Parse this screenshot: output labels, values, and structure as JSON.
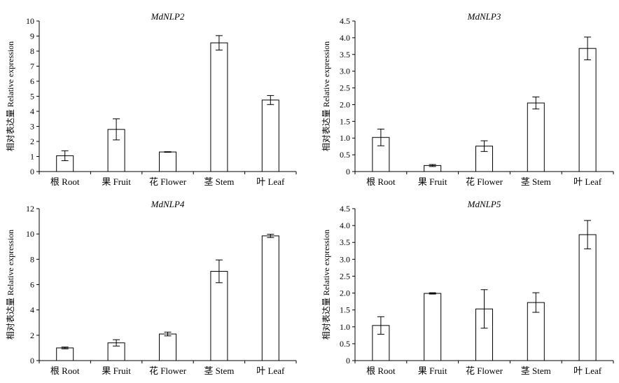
{
  "chart_data": [
    {
      "type": "bar",
      "title": "MdNLP2",
      "ylabel": "相对表达量 Relative expression",
      "xlabel": "",
      "categories": [
        "根 Root",
        "果 Fruit",
        "花 Flower",
        "茎 Stem",
        "叶 Leaf"
      ],
      "values": [
        1.05,
        2.8,
        1.3,
        8.55,
        4.75
      ],
      "errors": [
        0.33,
        0.7,
        0.02,
        0.48,
        0.3
      ],
      "ylim": [
        0,
        10
      ],
      "yticks": [
        "0",
        "1",
        "2",
        "3",
        "4",
        "5",
        "6",
        "7",
        "8",
        "9",
        "10"
      ],
      "grid": false
    },
    {
      "type": "bar",
      "title": "MdNLP3",
      "ylabel": "相对表达量 Relative expression",
      "xlabel": "",
      "categories": [
        "根 Root",
        "果 Fruit",
        "花 Flower",
        "茎 Stem",
        "叶 Leaf"
      ],
      "values": [
        1.02,
        0.18,
        0.76,
        2.05,
        3.68
      ],
      "errors": [
        0.25,
        0.03,
        0.16,
        0.18,
        0.34
      ],
      "ylim": [
        0,
        4.5
      ],
      "yticks": [
        "0",
        "0.5",
        "1.0",
        "1.5",
        "2.0",
        "2.5",
        "3.0",
        "3.5",
        "4.0",
        "4.5"
      ],
      "grid": false
    },
    {
      "type": "bar",
      "title": "MdNLP4",
      "ylabel": "相对表达量 Relative expression",
      "xlabel": "",
      "categories": [
        "根 Root",
        "果 Fruit",
        "花 Flower",
        "茎 Stem",
        "叶 Leaf"
      ],
      "values": [
        1.0,
        1.4,
        2.1,
        7.05,
        9.85
      ],
      "errors": [
        0.07,
        0.25,
        0.15,
        0.9,
        0.13
      ],
      "ylim": [
        0,
        12
      ],
      "yticks": [
        "0",
        "2",
        "4",
        "6",
        "8",
        "10",
        "12"
      ],
      "grid": false
    },
    {
      "type": "bar",
      "title": "MdNLP5",
      "ylabel": "相对表达量 Relative expression",
      "xlabel": "",
      "categories": [
        "根 Root",
        "果 Fruit",
        "花 Flower",
        "茎 Stem",
        "叶 Leaf"
      ],
      "values": [
        1.04,
        1.99,
        1.53,
        1.72,
        3.73
      ],
      "errors": [
        0.26,
        0.02,
        0.57,
        0.29,
        0.42
      ],
      "ylim": [
        0,
        4.5
      ],
      "yticks": [
        "0",
        "0.5",
        "1.0",
        "1.5",
        "2.0",
        "2.5",
        "3.0",
        "3.5",
        "4.0",
        "4.5"
      ],
      "grid": false
    }
  ]
}
